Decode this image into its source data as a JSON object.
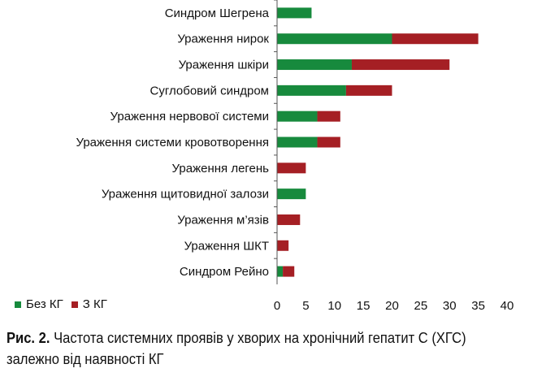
{
  "chart_data": {
    "type": "bar",
    "orientation": "horizontal",
    "stacked": true,
    "categories": [
      "Синдром Шегрена",
      "Ураження нирок",
      "Ураження шкіри",
      "Суглобовий синдром",
      "Ураження нервової системи",
      "Ураження системи кровотворення",
      "Ураження легень",
      "Ураження щитовидної залози",
      "Ураження м’язів",
      "Ураження ШКТ",
      "Синдром Рейно"
    ],
    "series": [
      {
        "name": "Без КГ",
        "color": "#178a3d",
        "values": [
          6,
          20,
          13,
          12,
          7,
          7,
          0,
          5,
          0,
          0,
          1
        ]
      },
      {
        "name": "З КГ",
        "color": "#a51f24",
        "values": [
          0,
          15,
          17,
          8,
          4,
          4,
          5,
          0,
          4,
          2,
          2
        ]
      }
    ],
    "xlim": [
      0,
      40
    ],
    "xticks": [
      0,
      5,
      10,
      15,
      20,
      25,
      30,
      35,
      40
    ],
    "grid": false,
    "legend_position": "bottom-left"
  },
  "caption": {
    "label": "Рис. 2.",
    "text": "Частота системних проявів у хворих на хронічний гепатит С (ХГС) залежно від наявності КГ"
  }
}
